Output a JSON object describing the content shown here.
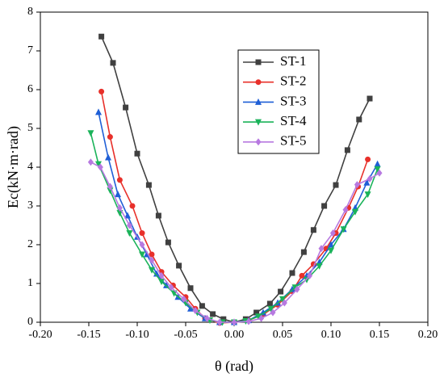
{
  "chart_data": {
    "type": "line",
    "x_label": "θ (rad)",
    "y_label": "Ec(kN·m·rad)",
    "xlim": [
      -0.2,
      0.2
    ],
    "xticks": [
      {
        "value": -0.2,
        "label": "-0.20"
      },
      {
        "value": -0.15,
        "label": "-0.15"
      },
      {
        "value": -0.1,
        "label": "-0.10"
      },
      {
        "value": -0.05,
        "label": "-0.05"
      },
      {
        "value": 0,
        "label": "0.00"
      },
      {
        "value": 0.05,
        "label": "0.05"
      },
      {
        "value": 0.1,
        "label": "0.10"
      },
      {
        "value": 0.15,
        "label": "0.15"
      },
      {
        "value": 0.2,
        "label": "0.20"
      }
    ],
    "ylim": [
      0,
      8
    ],
    "yticks": [
      0,
      1,
      2,
      3,
      4,
      5,
      6,
      7,
      8
    ],
    "grid": false,
    "legend": "upper center",
    "series": [
      {
        "name": "ST-1",
        "color": "#404040",
        "marker": "square",
        "x": [
          -0.137,
          -0.125,
          -0.112,
          -0.1,
          -0.088,
          -0.078,
          -0.068,
          -0.057,
          -0.045,
          -0.033,
          -0.022,
          -0.011,
          0,
          0.012,
          0.023,
          0.037,
          0.048,
          0.06,
          0.072,
          0.082,
          0.093,
          0.105,
          0.117,
          0.129,
          0.14
        ],
        "values": [
          7.37,
          6.69,
          5.54,
          4.35,
          3.54,
          2.75,
          2.06,
          1.46,
          0.88,
          0.42,
          0.21,
          0.08,
          0,
          0.08,
          0.25,
          0.48,
          0.79,
          1.27,
          1.81,
          2.38,
          3.0,
          3.54,
          4.44,
          5.23,
          5.77
        ]
      },
      {
        "name": "ST-2",
        "color": "#e8302a",
        "marker": "circle",
        "x": [
          -0.137,
          -0.128,
          -0.118,
          -0.105,
          -0.095,
          -0.085,
          -0.075,
          -0.063,
          -0.05,
          -0.04,
          -0.03,
          -0.015,
          0,
          0.015,
          0.03,
          0.045,
          0.06,
          0.07,
          0.082,
          0.095,
          0.105,
          0.118,
          0.128,
          0.138
        ],
        "values": [
          5.95,
          4.78,
          3.67,
          3.0,
          2.3,
          1.75,
          1.3,
          0.95,
          0.65,
          0.35,
          0.1,
          -0.02,
          0,
          0.05,
          0.2,
          0.45,
          0.8,
          1.2,
          1.5,
          1.9,
          2.3,
          2.95,
          3.5,
          4.2
        ]
      },
      {
        "name": "ST-3",
        "color": "#1f5fd6",
        "marker": "triangle-up",
        "x": [
          -0.14,
          -0.13,
          -0.12,
          -0.11,
          -0.1,
          -0.09,
          -0.08,
          -0.07,
          -0.058,
          -0.045,
          -0.03,
          -0.015,
          0,
          0.015,
          0.03,
          0.045,
          0.06,
          0.075,
          0.088,
          0.1,
          0.113,
          0.125,
          0.137,
          0.148
        ],
        "values": [
          5.42,
          4.25,
          3.3,
          2.75,
          2.2,
          1.75,
          1.25,
          0.95,
          0.65,
          0.35,
          0.1,
          0,
          0,
          0.05,
          0.25,
          0.5,
          0.85,
          1.2,
          1.55,
          2.0,
          2.4,
          2.95,
          3.6,
          4.08
        ]
      },
      {
        "name": "ST-4",
        "color": "#1bb35a",
        "marker": "triangle-down",
        "x": [
          -0.148,
          -0.14,
          -0.128,
          -0.118,
          -0.108,
          -0.095,
          -0.085,
          -0.075,
          -0.062,
          -0.05,
          -0.038,
          -0.025,
          -0.012,
          0,
          0.012,
          0.025,
          0.038,
          0.05,
          0.063,
          0.075,
          0.088,
          0.1,
          0.113,
          0.125,
          0.138,
          0.148
        ],
        "values": [
          4.88,
          4.08,
          3.4,
          2.82,
          2.3,
          1.75,
          1.35,
          1.05,
          0.75,
          0.5,
          0.25,
          0.05,
          0,
          0,
          0.03,
          0.15,
          0.35,
          0.6,
          0.9,
          1.1,
          1.45,
          1.85,
          2.4,
          2.85,
          3.3,
          3.95
        ]
      },
      {
        "name": "ST-5",
        "color": "#b779e0",
        "marker": "diamond",
        "x": [
          -0.148,
          -0.138,
          -0.128,
          -0.118,
          -0.108,
          -0.095,
          -0.085,
          -0.075,
          -0.065,
          -0.052,
          -0.04,
          -0.028,
          -0.015,
          0,
          0.015,
          0.028,
          0.04,
          0.052,
          0.065,
          0.078,
          0.09,
          0.102,
          0.115,
          0.127,
          0.14,
          0.15
        ],
        "values": [
          4.13,
          4.0,
          3.5,
          2.95,
          2.5,
          2.0,
          1.6,
          1.2,
          0.9,
          0.6,
          0.3,
          0.1,
          0,
          0,
          0.02,
          0.1,
          0.25,
          0.5,
          0.85,
          1.2,
          1.9,
          2.3,
          2.9,
          3.55,
          3.7,
          3.85
        ]
      }
    ]
  }
}
